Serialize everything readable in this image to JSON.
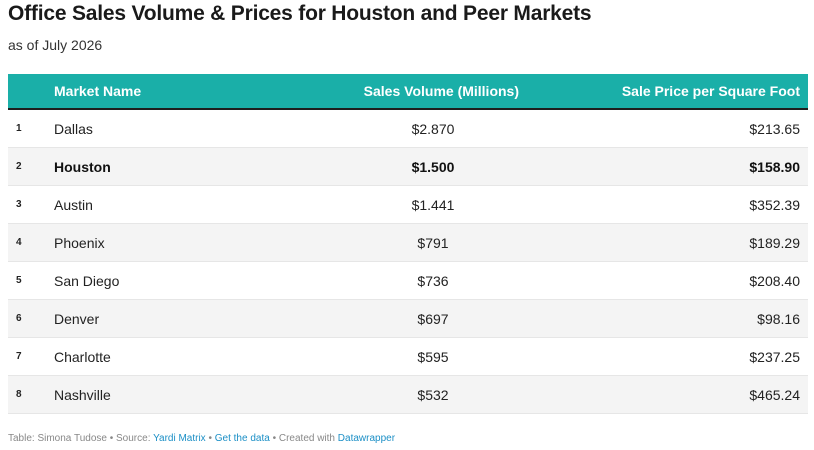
{
  "header": {
    "title": "Office Sales Volume & Prices for Houston and Peer Markets",
    "subtitle": "as of July 2026"
  },
  "chart_data": {
    "type": "table",
    "columns": [
      "",
      "Market Name",
      "Sales Volume (Millions)",
      "Sale Price per Square Foot"
    ],
    "rows": [
      {
        "rank": "1",
        "market": "Dallas",
        "volume": "$2.870",
        "price": "$213.65",
        "highlight": false
      },
      {
        "rank": "2",
        "market": "Houston",
        "volume": "$1.500",
        "price": "$158.90",
        "highlight": true
      },
      {
        "rank": "3",
        "market": "Austin",
        "volume": "$1.441",
        "price": "$352.39",
        "highlight": false
      },
      {
        "rank": "4",
        "market": "Phoenix",
        "volume": "$791",
        "price": "$189.29",
        "highlight": false
      },
      {
        "rank": "5",
        "market": "San Diego",
        "volume": "$736",
        "price": "$208.40",
        "highlight": false
      },
      {
        "rank": "6",
        "market": "Denver",
        "volume": "$697",
        "price": "$98.16",
        "highlight": false
      },
      {
        "rank": "7",
        "market": "Charlotte",
        "volume": "$595",
        "price": "$237.25",
        "highlight": false
      },
      {
        "rank": "8",
        "market": "Nashville",
        "volume": "$532",
        "price": "$465.24",
        "highlight": false
      }
    ],
    "header_color": "#1aafa8"
  },
  "footer": {
    "credit": "Table: Simona Tudose",
    "sep": " • ",
    "source_label": "Source: ",
    "source_link": "Yardi Matrix",
    "get_data": "Get the data",
    "created_label": "Created with ",
    "created_link": "Datawrapper"
  }
}
